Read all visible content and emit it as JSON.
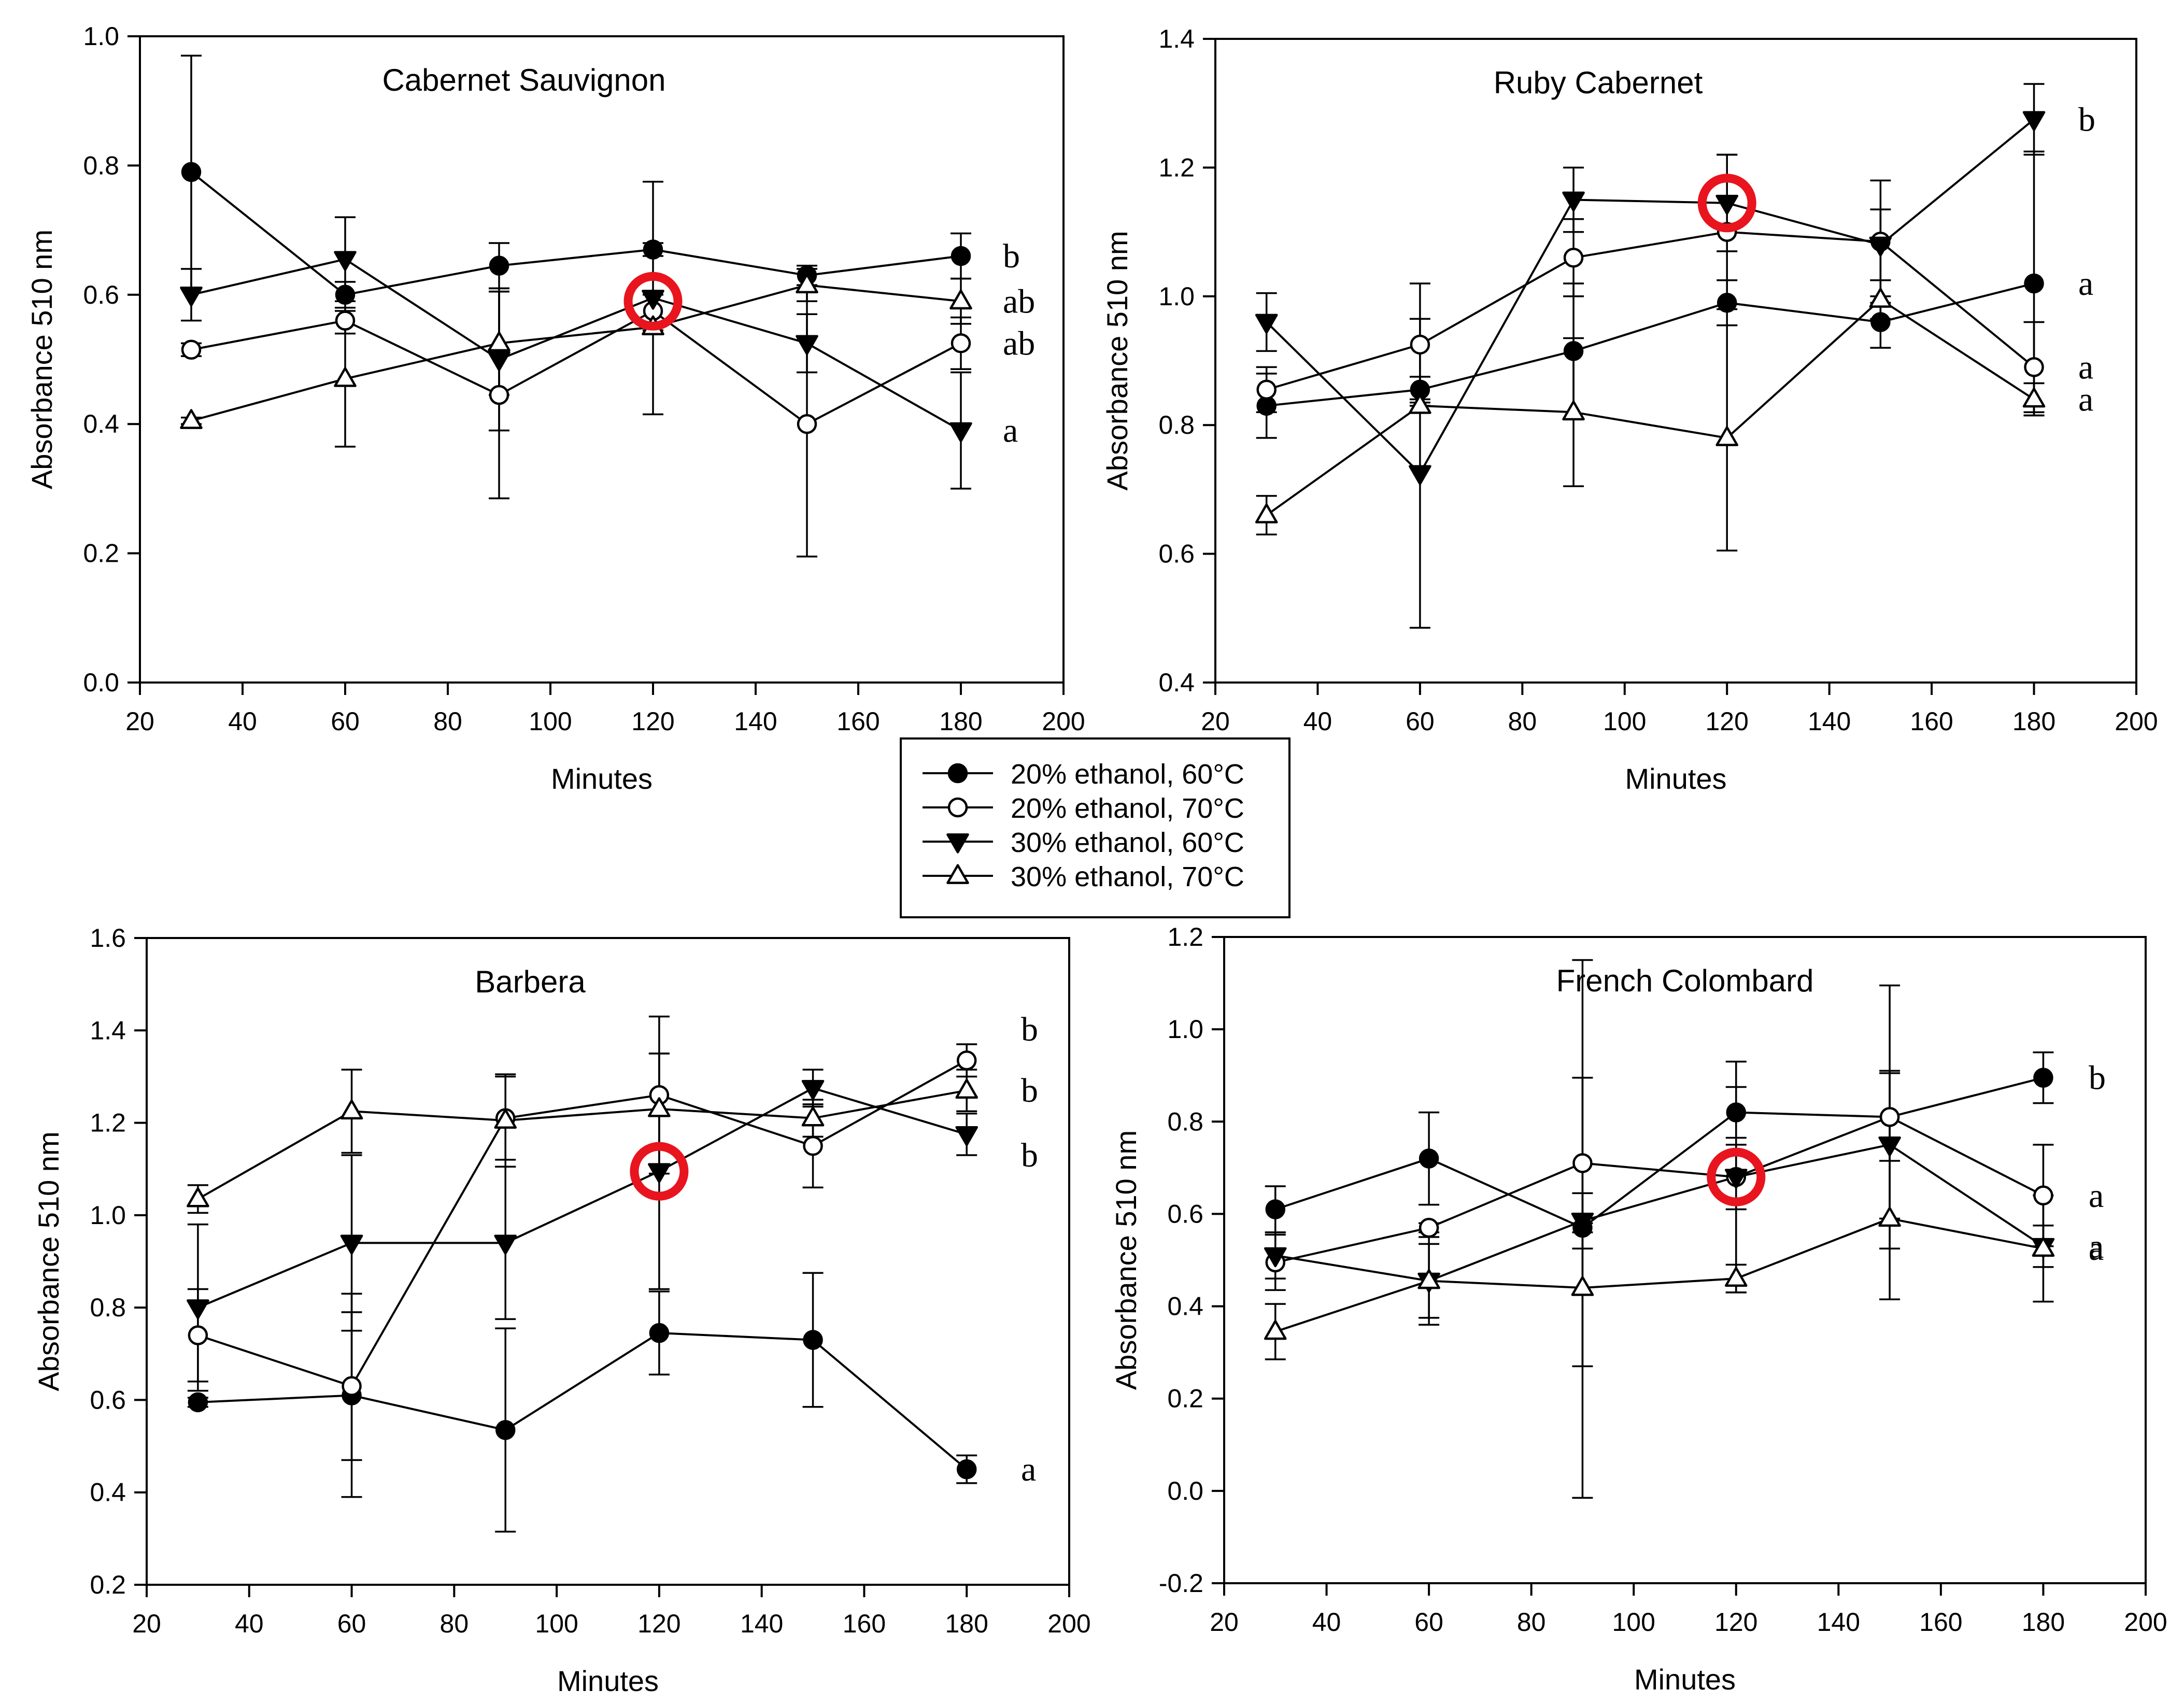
{
  "chart_data": [
    {
      "type": "line",
      "title": "Cabernet Sauvignon",
      "xlabel": "Minutes",
      "ylabel": "Absorbance 510 nm",
      "xlim": [
        20,
        200
      ],
      "ylim": [
        0.0,
        1.0
      ],
      "x_ticks": [
        20,
        40,
        60,
        80,
        100,
        120,
        140,
        160,
        180,
        200
      ],
      "y_ticks": [
        0.0,
        0.2,
        0.4,
        0.6,
        0.8,
        1.0
      ],
      "y_decimals": 1,
      "x": [
        30,
        60,
        90,
        120,
        150,
        180
      ],
      "series": [
        {
          "name": "20% ethanol, 60°C",
          "marker": "filled-circle",
          "values": [
            0.79,
            0.6,
            0.645,
            0.67,
            0.63,
            0.66
          ],
          "errors": [
            0.18,
            0.02,
            0.035,
            0.01,
            0.015,
            0.035
          ]
        },
        {
          "name": "20% ethanol, 70°C",
          "marker": "open-circle",
          "values": [
            0.515,
            0.56,
            0.445,
            0.575,
            0.4,
            0.525
          ],
          "errors": [
            0.01,
            0.02,
            0.16,
            0.025,
            0.205,
            0.04
          ]
        },
        {
          "name": "30% ethanol, 60°C",
          "marker": "filled-triangle-down",
          "values": [
            0.6,
            0.655,
            0.5,
            0.595,
            0.525,
            0.39
          ],
          "errors": [
            0.04,
            0.065,
            0.11,
            0.18,
            0.045,
            0.09
          ]
        },
        {
          "name": "30% ethanol, 70°C",
          "marker": "open-triangle-up",
          "values": [
            0.405,
            0.47,
            0.525,
            0.55,
            0.615,
            0.59
          ],
          "errors": [
            0.005,
            0.105,
            0.08,
            0.005,
            0.025,
            0.035
          ]
        }
      ],
      "significance_letters": [
        "b",
        "ab",
        "ab",
        "a"
      ],
      "highlight": {
        "x": 120,
        "y": 0.59
      }
    },
    {
      "type": "line",
      "title": "Ruby Cabernet",
      "xlabel": "Minutes",
      "ylabel": "Absorbance 510 nm",
      "xlim": [
        20,
        200
      ],
      "ylim": [
        0.4,
        1.4
      ],
      "x_ticks": [
        20,
        40,
        60,
        80,
        100,
        120,
        140,
        160,
        180,
        200
      ],
      "y_ticks": [
        0.4,
        0.6,
        0.8,
        1.0,
        1.2,
        1.4
      ],
      "y_decimals": 1,
      "x": [
        30,
        60,
        90,
        120,
        150,
        180
      ],
      "series": [
        {
          "name": "20% ethanol, 60°C",
          "marker": "filled-circle",
          "values": [
            0.83,
            0.855,
            0.915,
            0.99,
            0.96,
            1.02
          ],
          "errors": [
            0.05,
            0.02,
            0.105,
            0.035,
            0.04,
            0.205
          ]
        },
        {
          "name": "20% ethanol, 70°C",
          "marker": "open-circle",
          "values": [
            0.855,
            0.925,
            1.06,
            1.1,
            1.085,
            0.89
          ],
          "errors": [
            0.035,
            0.095,
            0.06,
            0.12,
            0.095,
            0.07
          ]
        },
        {
          "name": "30% ethanol, 60°C",
          "marker": "filled-triangle-down",
          "values": [
            0.96,
            0.725,
            1.15,
            1.145,
            1.08,
            1.275
          ],
          "errors": [
            0.045,
            0.24,
            0.05,
            0.075,
            0.055,
            0.055
          ]
        },
        {
          "name": "30% ethanol, 70°C",
          "marker": "open-triangle-up",
          "values": [
            0.66,
            0.83,
            0.82,
            0.78,
            0.995,
            0.84
          ],
          "errors": [
            0.03,
            0.01,
            0.115,
            0.175,
            0.03,
            0.025
          ]
        }
      ],
      "significance_letters": [
        "b",
        "a",
        "a",
        "a"
      ],
      "highlight": {
        "x": 120,
        "y": 1.145
      }
    },
    {
      "type": "line",
      "title": "Barbera",
      "xlabel": "Minutes",
      "ylabel": "Absorbance 510 nm",
      "xlim": [
        20,
        200
      ],
      "ylim": [
        0.2,
        1.6
      ],
      "x_ticks": [
        20,
        40,
        60,
        80,
        100,
        120,
        140,
        160,
        180,
        200
      ],
      "y_ticks": [
        0.2,
        0.4,
        0.6,
        0.8,
        1.0,
        1.2,
        1.4,
        1.6
      ],
      "y_decimals": 1,
      "x": [
        30,
        60,
        90,
        120,
        150,
        180
      ],
      "series": [
        {
          "name": "20% ethanol, 60°C",
          "marker": "filled-circle",
          "values": [
            0.595,
            0.61,
            0.535,
            0.745,
            0.73,
            0.45
          ],
          "errors": [
            0.01,
            0.22,
            0.22,
            0.09,
            0.145,
            0.03
          ]
        },
        {
          "name": "20% ethanol, 70°C",
          "marker": "open-circle",
          "values": [
            0.74,
            0.63,
            1.21,
            1.26,
            1.15,
            1.335
          ],
          "errors": [
            0.1,
            0.16,
            0.09,
            0.17,
            0.09,
            0.035
          ]
        },
        {
          "name": "30% ethanol, 60°C",
          "marker": "filled-triangle-down",
          "values": [
            0.8,
            0.94,
            0.94,
            1.095,
            1.275,
            1.175
          ],
          "errors": [
            0.18,
            0.19,
            0.165,
            0.255,
            0.04,
            0.045
          ]
        },
        {
          "name": "30% ethanol, 70°C",
          "marker": "open-triangle-up",
          "values": [
            1.035,
            1.225,
            1.205,
            1.23,
            1.21,
            1.27
          ],
          "errors": [
            0.03,
            0.09,
            0.1,
            0.12,
            0.04,
            0.045
          ]
        }
      ],
      "significance_letters": [
        "b",
        "b",
        "b",
        "a"
      ],
      "highlight": {
        "x": 120,
        "y": 1.095
      }
    },
    {
      "type": "line",
      "title": "French Colombard",
      "xlabel": "Minutes",
      "ylabel": "Absorbance 510 nm",
      "xlim": [
        20,
        200
      ],
      "ylim": [
        -0.2,
        1.2
      ],
      "x_ticks": [
        20,
        40,
        60,
        80,
        100,
        120,
        140,
        160,
        180,
        200
      ],
      "y_ticks": [
        -0.2,
        0.0,
        0.2,
        0.4,
        0.6,
        0.8,
        1.0,
        1.2
      ],
      "y_decimals": 1,
      "x": [
        30,
        60,
        90,
        120,
        150,
        180
      ],
      "series": [
        {
          "name": "20% ethanol, 60°C",
          "marker": "filled-circle",
          "values": [
            0.61,
            0.72,
            0.57,
            0.82,
            0.81,
            0.895
          ],
          "errors": [
            0.05,
            0.1,
            0.01,
            0.055,
            0.095,
            0.055
          ]
        },
        {
          "name": "20% ethanol, 70°C",
          "marker": "open-circle",
          "values": [
            0.495,
            0.57,
            0.71,
            0.68,
            0.81,
            0.64
          ],
          "errors": [
            0.06,
            0.01,
            0.44,
            0.25,
            0.285,
            0.11
          ]
        },
        {
          "name": "30% ethanol, 60°C",
          "marker": "filled-triangle-down",
          "values": [
            0.51,
            0.455,
            0.585,
            0.68,
            0.75,
            0.53
          ],
          "errors": [
            0.05,
            0.08,
            0.06,
            0.07,
            0.16,
            0.045
          ]
        },
        {
          "name": "30% ethanol, 70°C",
          "marker": "open-triangle-up",
          "values": [
            0.345,
            0.455,
            0.44,
            0.46,
            0.59,
            0.525
          ],
          "errors": [
            0.06,
            0.095,
            0.455,
            0.03,
            0.175,
            0.115
          ]
        }
      ],
      "significance_letters": [
        "b",
        "a",
        "a",
        "a"
      ],
      "highlight": {
        "x": 120,
        "y": 0.68
      }
    }
  ],
  "legend": {
    "entries": [
      {
        "label": "20% ethanol, 60°C",
        "marker": "filled-circle"
      },
      {
        "label": "20% ethanol, 70°C",
        "marker": "open-circle"
      },
      {
        "label": "30% ethanol, 60°C",
        "marker": "filled-triangle-down"
      },
      {
        "label": "30% ethanol, 70°C",
        "marker": "open-triangle-up"
      }
    ]
  },
  "colors": {
    "line": "#000000",
    "highlight": "#e8141e",
    "background": "#ffffff"
  }
}
